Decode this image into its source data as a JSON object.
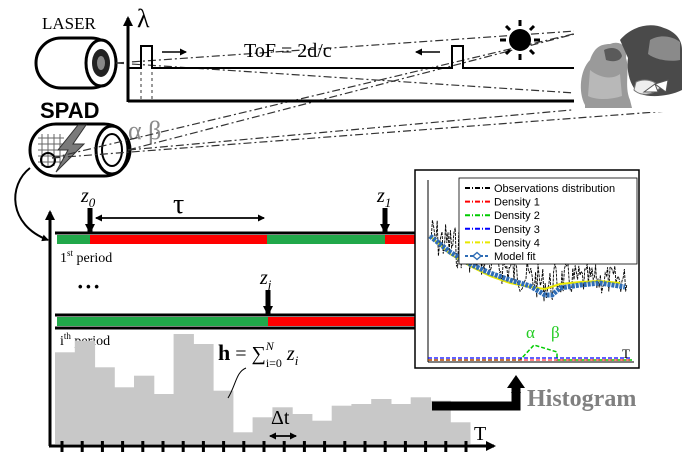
{
  "labels": {
    "laser": "LASER",
    "spad": "SPAD",
    "alpha_beta": "α β",
    "lambda": "λ",
    "tof": "ToF = 2d/c",
    "tau": "τ",
    "z0": "z",
    "z0_sub": "0",
    "z1": "z",
    "z1_sub": "1",
    "zj": "z",
    "zj_sub": "j",
    "period1": "1",
    "period1_sup": "st",
    "period1_rest": " period",
    "periodi": "i",
    "periodi_sup": "th",
    "periodi_rest": " period",
    "ellipsis": "• • •",
    "h_bold": "h",
    "h_eq": " = ∑",
    "h_sup": "N",
    "h_sub": "i=0",
    "h_zi": " z",
    "h_zi_sub": "i",
    "delta_t": "Δt",
    "axis_T": "T",
    "histogram": "Histogram"
  },
  "inset": {
    "legend": [
      {
        "label": "Observations distribution",
        "color": "#000000",
        "style": "dashdot"
      },
      {
        "label": "Density 1",
        "color": "#ff0000",
        "style": "dashdot"
      },
      {
        "label": "Density 2",
        "color": "#00cc00",
        "style": "dashdot"
      },
      {
        "label": "Density 3",
        "color": "#0000ff",
        "style": "dashdot"
      },
      {
        "label": "Density 4",
        "color": "#e8e800",
        "style": "dashdot"
      },
      {
        "label": "Model fit",
        "color": "#2f6db5",
        "style": "marker"
      }
    ],
    "alpha": "α",
    "beta": "β",
    "axis_T": "T"
  },
  "histogram_bars": [
    0.55,
    0.62,
    0.46,
    0.34,
    0.41,
    0.3,
    0.66,
    0.6,
    0.32,
    0.07,
    0.16,
    0.22,
    0.18,
    0.14,
    0.23,
    0.24,
    0.27,
    0.24,
    0.28,
    0.26,
    0.13
  ],
  "colors": {
    "green": "#21a84a",
    "red": "#ff0000",
    "hist_gray": "#c8c8c8",
    "label_gray": "#808080"
  }
}
